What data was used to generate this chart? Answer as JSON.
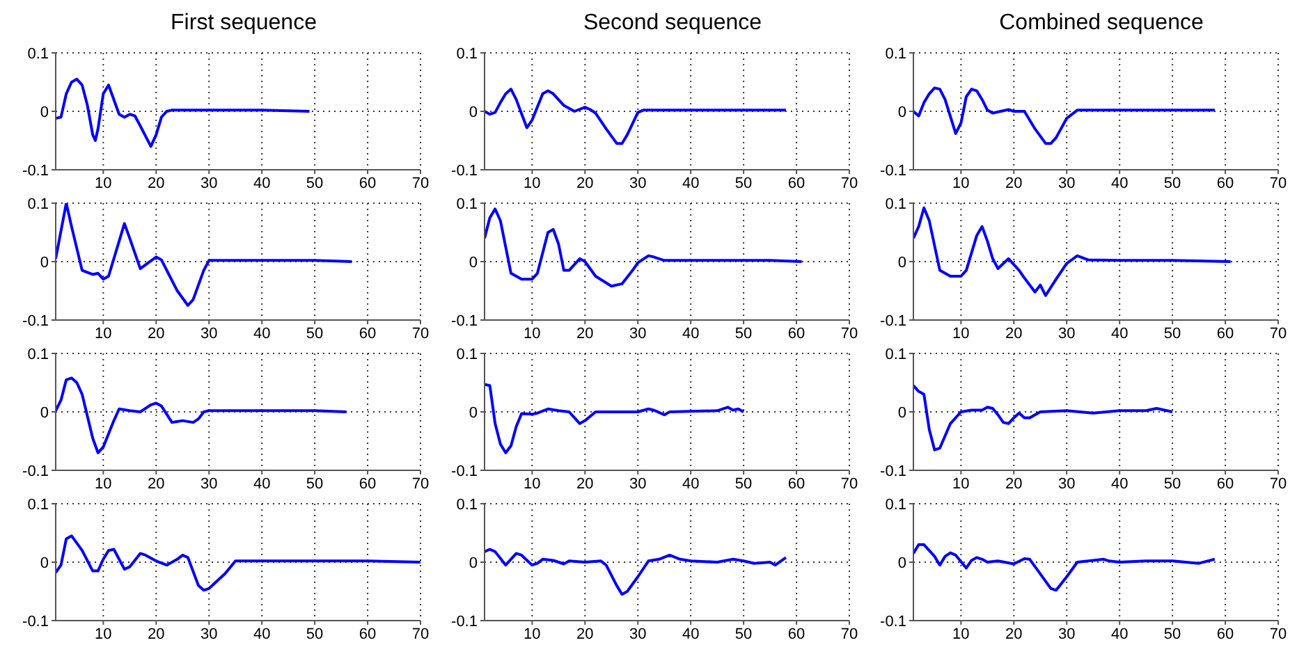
{
  "chart_data": [
    {
      "type": "line",
      "title": "First sequence",
      "x": [
        1,
        2,
        3,
        4,
        5,
        6,
        7,
        8,
        8.5,
        9,
        10,
        11,
        12,
        13,
        14,
        15,
        16,
        17,
        19,
        20,
        21,
        22,
        23,
        30,
        40,
        49
      ],
      "series": [
        {
          "color": "#0000ff",
          "values": [
            -0.012,
            -0.01,
            0.03,
            0.05,
            0.055,
            0.045,
            0.01,
            -0.04,
            -0.05,
            -0.03,
            0.03,
            0.045,
            0.02,
            -0.005,
            -0.01,
            -0.005,
            -0.008,
            -0.025,
            -0.06,
            -0.04,
            -0.01,
            0,
            0.002,
            0.002,
            0.002,
            0
          ]
        }
      ],
      "xlim": [
        1,
        70
      ],
      "ylim": [
        -0.1,
        0.1
      ],
      "xticks": [
        10,
        20,
        30,
        40,
        50,
        60,
        70
      ],
      "yticks": [
        -0.1,
        0,
        0.1
      ],
      "grid": true
    },
    {
      "type": "line",
      "title": "Second sequence",
      "x": [
        1,
        2,
        3,
        4,
        5,
        6,
        7,
        9,
        10,
        12,
        13,
        14,
        16,
        18,
        20,
        21,
        22,
        24,
        26,
        27,
        28,
        30,
        31,
        40,
        50,
        58
      ],
      "series": [
        {
          "color": "#0000ff",
          "values": [
            0,
            -0.005,
            -0.002,
            0.015,
            0.03,
            0.038,
            0.02,
            -0.028,
            -0.015,
            0.03,
            0.035,
            0.03,
            0.01,
            0,
            0.007,
            0.003,
            -0.003,
            -0.03,
            -0.055,
            -0.055,
            -0.04,
            -0.002,
            0.002,
            0.002,
            0.002,
            0.002
          ]
        }
      ],
      "xlim": [
        1,
        70
      ],
      "ylim": [
        -0.1,
        0.1
      ],
      "xticks": [
        10,
        20,
        30,
        40,
        50,
        60,
        70
      ],
      "yticks": [
        -0.1,
        0,
        0.1
      ],
      "grid": true
    },
    {
      "type": "line",
      "title": "Combined sequence",
      "x": [
        1,
        2,
        3,
        4,
        5,
        6,
        7,
        9,
        10,
        11,
        12,
        13,
        14,
        15,
        16,
        19,
        20,
        22,
        24,
        26,
        27,
        28,
        30,
        32,
        40,
        50,
        58
      ],
      "series": [
        {
          "color": "#0000ff",
          "values": [
            0,
            -0.008,
            0.015,
            0.03,
            0.04,
            0.038,
            0.02,
            -0.038,
            -0.02,
            0.025,
            0.038,
            0.035,
            0.02,
            0.002,
            -0.003,
            0.003,
            0,
            0,
            -0.03,
            -0.055,
            -0.055,
            -0.045,
            -0.012,
            0.002,
            0.002,
            0.002,
            0.002
          ]
        }
      ],
      "xlim": [
        1,
        70
      ],
      "ylim": [
        -0.1,
        0.1
      ],
      "xticks": [
        10,
        20,
        30,
        40,
        50,
        60,
        70
      ],
      "yticks": [
        -0.1,
        0,
        0.1
      ],
      "grid": true
    },
    {
      "type": "line",
      "x": [
        1,
        3,
        4,
        6,
        8,
        9,
        10,
        11,
        13,
        14,
        15,
        17,
        20,
        21,
        24,
        26,
        27,
        29,
        30,
        40,
        50,
        57
      ],
      "series": [
        {
          "color": "#0000ff",
          "values": [
            0.005,
            0.1,
            0.06,
            -0.015,
            -0.022,
            -0.02,
            -0.03,
            -0.025,
            0.035,
            0.065,
            0.04,
            -0.012,
            0.008,
            0.003,
            -0.05,
            -0.075,
            -0.065,
            -0.015,
            0.002,
            0.002,
            0.002,
            0
          ]
        }
      ],
      "xlim": [
        1,
        70
      ],
      "ylim": [
        -0.1,
        0.1
      ],
      "xticks": [
        10,
        20,
        30,
        40,
        50,
        60,
        70
      ],
      "yticks": [
        -0.1,
        0,
        0.1
      ],
      "grid": true
    },
    {
      "type": "line",
      "x": [
        1,
        2,
        3,
        4,
        6,
        8,
        10,
        11,
        13,
        14,
        15,
        16,
        17,
        19,
        20,
        22,
        25,
        27,
        29,
        30,
        32,
        33,
        35,
        45,
        55,
        61
      ],
      "series": [
        {
          "color": "#0000ff",
          "values": [
            0.04,
            0.075,
            0.09,
            0.07,
            -0.02,
            -0.03,
            -0.03,
            -0.02,
            0.05,
            0.055,
            0.03,
            -0.015,
            -0.015,
            0.005,
            0,
            -0.025,
            -0.042,
            -0.038,
            -0.015,
            -0.002,
            0.01,
            0.008,
            0.002,
            0.002,
            0.002,
            0
          ]
        }
      ],
      "xlim": [
        1,
        70
      ],
      "ylim": [
        -0.1,
        0.1
      ],
      "xticks": [
        10,
        20,
        30,
        40,
        50,
        60,
        70
      ],
      "yticks": [
        -0.1,
        0,
        0.1
      ],
      "grid": true
    },
    {
      "type": "line",
      "x": [
        1,
        2,
        3,
        4,
        6,
        8,
        10,
        11,
        13,
        14,
        15,
        16,
        17,
        19,
        21,
        22,
        24,
        25,
        26,
        28,
        30,
        32,
        34,
        40,
        50,
        61
      ],
      "series": [
        {
          "color": "#0000ff",
          "values": [
            0.04,
            0.06,
            0.092,
            0.07,
            -0.015,
            -0.025,
            -0.025,
            -0.015,
            0.045,
            0.06,
            0.035,
            0.005,
            -0.012,
            0.005,
            -0.015,
            -0.028,
            -0.052,
            -0.04,
            -0.058,
            -0.03,
            -0.003,
            0.01,
            0.003,
            0.002,
            0.002,
            0
          ]
        }
      ],
      "xlim": [
        1,
        70
      ],
      "ylim": [
        -0.1,
        0.1
      ],
      "xticks": [
        10,
        20,
        30,
        40,
        50,
        60,
        70
      ],
      "yticks": [
        -0.1,
        0,
        0.1
      ],
      "grid": true
    },
    {
      "type": "line",
      "x": [
        1,
        2,
        3,
        4,
        5,
        6,
        8,
        9,
        10,
        12,
        13,
        15,
        17,
        19,
        20,
        21,
        23,
        25,
        27,
        28,
        29,
        30,
        40,
        50,
        56
      ],
      "series": [
        {
          "color": "#0000ff",
          "values": [
            0.002,
            0.02,
            0.055,
            0.058,
            0.05,
            0.03,
            -0.045,
            -0.07,
            -0.06,
            -0.015,
            0.005,
            0.002,
            0,
            0.012,
            0.015,
            0.01,
            -0.018,
            -0.015,
            -0.018,
            -0.012,
            0,
            0.002,
            0.002,
            0.002,
            0
          ]
        }
      ],
      "xlim": [
        1,
        70
      ],
      "ylim": [
        -0.1,
        0.1
      ],
      "xticks": [
        10,
        20,
        30,
        40,
        50,
        60,
        70
      ],
      "yticks": [
        -0.1,
        0,
        0.1
      ],
      "grid": true
    },
    {
      "type": "line",
      "x": [
        1,
        2,
        3,
        4,
        5,
        6,
        7,
        8,
        10,
        11,
        13,
        15,
        17,
        18,
        19,
        20,
        22,
        30,
        32,
        33,
        35,
        36,
        45,
        47,
        48,
        49,
        50
      ],
      "series": [
        {
          "color": "#0000ff",
          "values": [
            0.047,
            0.045,
            -0.02,
            -0.055,
            -0.07,
            -0.058,
            -0.025,
            -0.003,
            -0.004,
            -0.002,
            0.005,
            0.002,
            0,
            -0.01,
            -0.02,
            -0.015,
            0,
            0,
            0.005,
            0.003,
            -0.005,
            0,
            0.002,
            0.008,
            0.003,
            0.005,
            0
          ]
        }
      ],
      "xlim": [
        1,
        70
      ],
      "ylim": [
        -0.1,
        0.1
      ],
      "xticks": [
        10,
        20,
        30,
        40,
        50,
        60,
        70
      ],
      "yticks": [
        -0.1,
        0,
        0.1
      ],
      "grid": true
    },
    {
      "type": "line",
      "x": [
        1,
        2,
        3,
        4,
        5,
        6,
        8,
        10,
        12,
        14,
        15,
        16,
        17,
        18,
        19,
        20,
        21,
        22,
        23,
        25,
        30,
        35,
        40,
        45,
        47,
        50
      ],
      "series": [
        {
          "color": "#0000ff",
          "values": [
            0.045,
            0.035,
            0.03,
            -0.03,
            -0.065,
            -0.062,
            -0.02,
            0,
            0.003,
            0.003,
            0.008,
            0.006,
            -0.005,
            -0.018,
            -0.02,
            -0.01,
            -0.002,
            -0.01,
            -0.01,
            0,
            0.002,
            -0.002,
            0.002,
            0.002,
            0.006,
            0
          ]
        }
      ],
      "xlim": [
        1,
        70
      ],
      "ylim": [
        -0.1,
        0.1
      ],
      "xticks": [
        10,
        20,
        30,
        40,
        50,
        60,
        70
      ],
      "yticks": [
        -0.1,
        0,
        0.1
      ],
      "grid": true
    },
    {
      "type": "line",
      "x": [
        1,
        2,
        3,
        4,
        6,
        8,
        9,
        10,
        11,
        12,
        14,
        15,
        17,
        18,
        20,
        22,
        24,
        25,
        26,
        28,
        29,
        30,
        33,
        35,
        40,
        50,
        60,
        70
      ],
      "series": [
        {
          "color": "#0000ff",
          "values": [
            -0.018,
            -0.005,
            0.04,
            0.045,
            0.02,
            -0.015,
            -0.015,
            0.005,
            0.02,
            0.022,
            -0.012,
            -0.008,
            0.015,
            0.012,
            0.002,
            -0.005,
            0.005,
            0.012,
            0.008,
            -0.04,
            -0.048,
            -0.045,
            -0.02,
            0.002,
            0.002,
            0.002,
            0.002,
            0
          ]
        }
      ],
      "xlim": [
        1,
        70
      ],
      "ylim": [
        -0.1,
        0.1
      ],
      "xticks": [
        10,
        20,
        30,
        40,
        50,
        60,
        70
      ],
      "yticks": [
        -0.1,
        0,
        0.1
      ],
      "grid": true
    },
    {
      "type": "line",
      "x": [
        1,
        2,
        3,
        5,
        7,
        8,
        10,
        11,
        12,
        14,
        16,
        17,
        20,
        23,
        24,
        26,
        27,
        28,
        30,
        32,
        34,
        36,
        38,
        40,
        45,
        48,
        50,
        52,
        55,
        56,
        58
      ],
      "series": [
        {
          "color": "#0000ff",
          "values": [
            0.018,
            0.022,
            0.018,
            -0.005,
            0.015,
            0.012,
            -0.005,
            -0.002,
            0.005,
            0.003,
            -0.003,
            0.002,
            0,
            0.002,
            -0.005,
            -0.04,
            -0.055,
            -0.05,
            -0.025,
            0.002,
            0.005,
            0.012,
            0.005,
            0.002,
            0,
            0.005,
            0.002,
            -0.002,
            0,
            -0.005,
            0.008
          ]
        }
      ],
      "xlim": [
        1,
        70
      ],
      "ylim": [
        -0.1,
        0.1
      ],
      "xticks": [
        10,
        20,
        30,
        40,
        50,
        60,
        70
      ],
      "yticks": [
        -0.1,
        0,
        0.1
      ],
      "grid": true
    },
    {
      "type": "line",
      "x": [
        1,
        2,
        3,
        5,
        6,
        7,
        8,
        9,
        11,
        12,
        13,
        14,
        15,
        17,
        20,
        22,
        23,
        25,
        27,
        28,
        30,
        32,
        35,
        37,
        38,
        40,
        45,
        50,
        55,
        58
      ],
      "series": [
        {
          "color": "#0000ff",
          "values": [
            0.015,
            0.03,
            0.03,
            0.01,
            -0.005,
            0.01,
            0.016,
            0.012,
            -0.01,
            0.003,
            0.008,
            0.005,
            0,
            0.002,
            -0.003,
            0.006,
            0.005,
            -0.02,
            -0.045,
            -0.048,
            -0.025,
            0,
            0.003,
            0.005,
            0.002,
            0,
            0.002,
            0.002,
            -0.002,
            0.005
          ]
        }
      ],
      "xlim": [
        1,
        70
      ],
      "ylim": [
        -0.1,
        0.1
      ],
      "xticks": [
        10,
        20,
        30,
        40,
        50,
        60,
        70
      ],
      "yticks": [
        -0.1,
        0,
        0.1
      ],
      "grid": true
    }
  ]
}
